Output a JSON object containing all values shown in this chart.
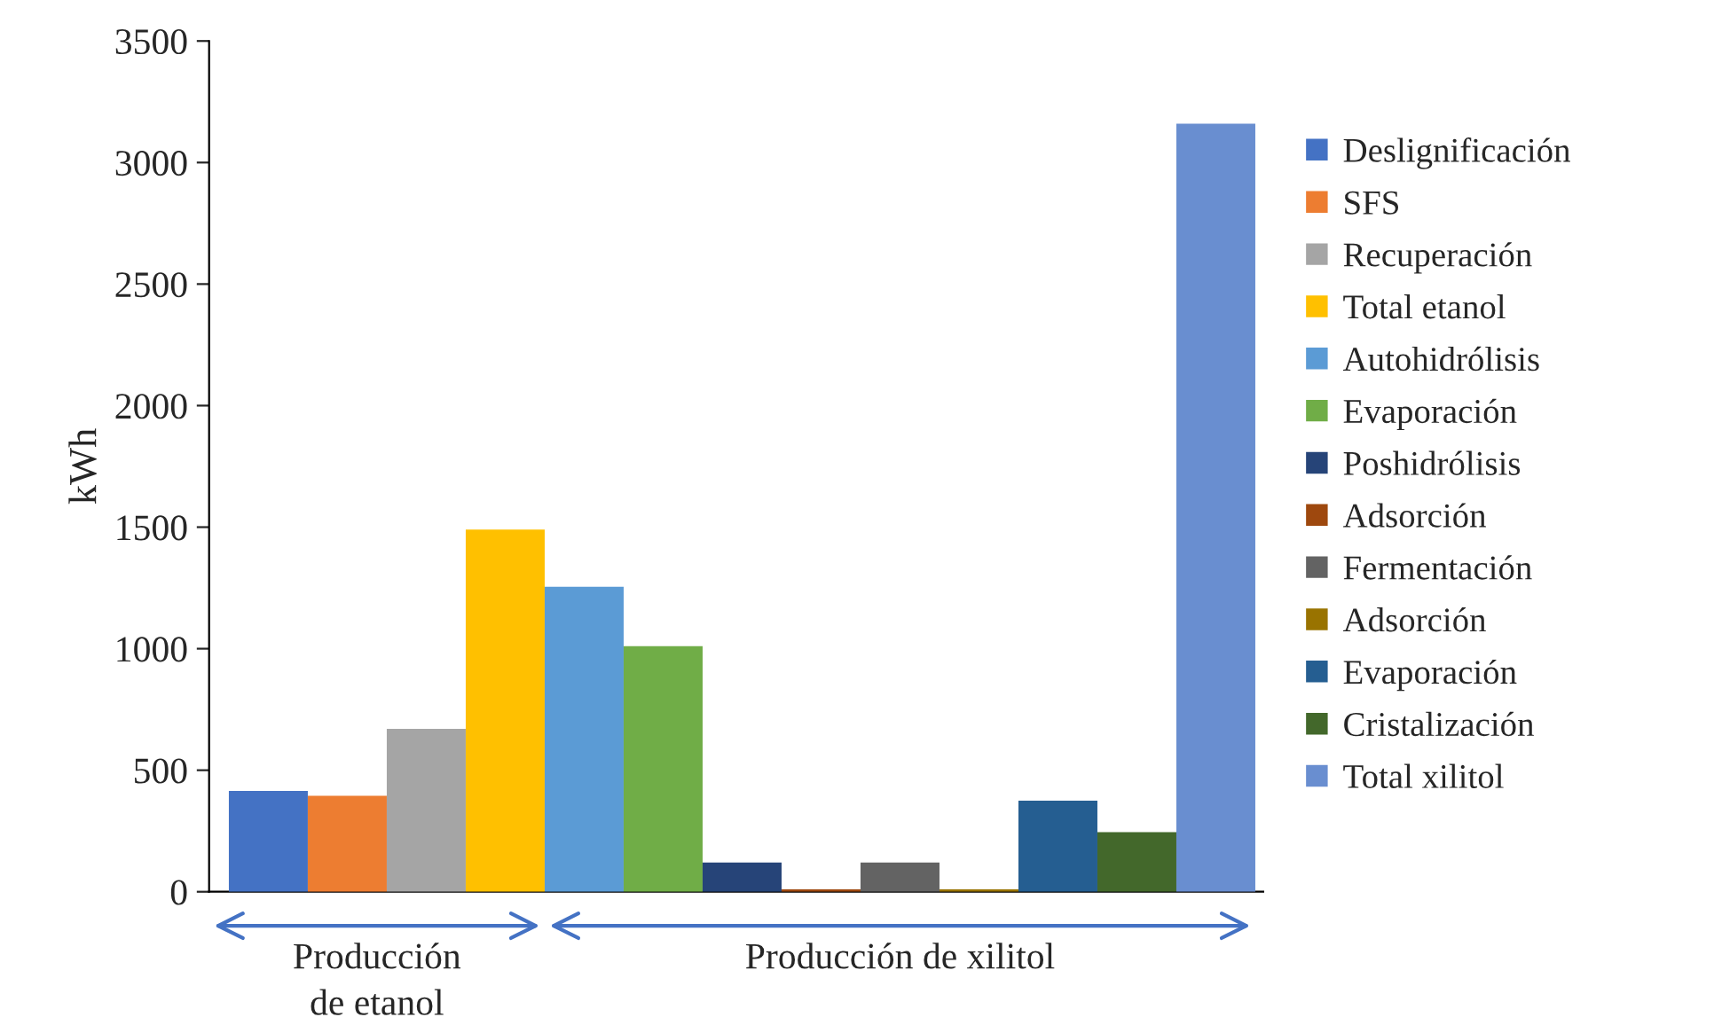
{
  "chart_data": {
    "type": "bar",
    "ylabel": "kWh",
    "categories": [
      null,
      null,
      null,
      null,
      null,
      null,
      null,
      null,
      null,
      null,
      null,
      null,
      null
    ],
    "series": [
      {
        "name": "Deslignificación",
        "color": "#4472c4",
        "values": [
          415,
          null,
          null,
          null,
          null,
          null,
          null,
          null,
          null,
          null,
          null,
          null,
          null
        ]
      },
      {
        "name": "SFS",
        "color": "#ed7d31",
        "values": [
          null,
          395,
          null,
          null,
          null,
          null,
          null,
          null,
          null,
          null,
          null,
          null,
          null
        ]
      },
      {
        "name": "Recuperación",
        "color": "#a5a5a5",
        "values": [
          null,
          null,
          670,
          null,
          null,
          null,
          null,
          null,
          null,
          null,
          null,
          null,
          null
        ]
      },
      {
        "name": "Total etanol",
        "color": "#ffc000",
        "values": [
          null,
          null,
          null,
          1490,
          null,
          null,
          null,
          null,
          null,
          null,
          null,
          null,
          null
        ]
      },
      {
        "name": "Autohidrólisis",
        "color": "#5b9bd5",
        "values": [
          null,
          null,
          null,
          null,
          1255,
          null,
          null,
          null,
          null,
          null,
          null,
          null,
          null
        ]
      },
      {
        "name": "Evaporación",
        "color": "#70ad47",
        "values": [
          null,
          null,
          null,
          null,
          null,
          1010,
          null,
          null,
          null,
          null,
          null,
          null,
          null
        ]
      },
      {
        "name": "Poshidrólisis",
        "color": "#264478",
        "values": [
          null,
          null,
          null,
          null,
          null,
          null,
          120,
          null,
          null,
          null,
          null,
          null,
          null
        ]
      },
      {
        "name": "Adsorción",
        "color": "#9e480e",
        "values": [
          null,
          null,
          null,
          null,
          null,
          null,
          null,
          10,
          null,
          null,
          null,
          null,
          null
        ]
      },
      {
        "name": "Fermentación",
        "color": "#636363",
        "values": [
          null,
          null,
          null,
          null,
          null,
          null,
          null,
          null,
          120,
          null,
          null,
          null,
          null
        ]
      },
      {
        "name": "Adsorción",
        "color": "#997300",
        "values": [
          null,
          null,
          null,
          null,
          null,
          null,
          null,
          null,
          null,
          10,
          null,
          null,
          null
        ]
      },
      {
        "name": "Evaporación",
        "color": "#255e91",
        "values": [
          null,
          null,
          null,
          null,
          null,
          null,
          null,
          null,
          null,
          null,
          375,
          null,
          null
        ]
      },
      {
        "name": "Cristalización",
        "color": "#43682b",
        "values": [
          null,
          null,
          null,
          null,
          null,
          null,
          null,
          null,
          null,
          null,
          null,
          245,
          null
        ]
      },
      {
        "name": "Total xilitol",
        "color": "#698ed0",
        "values": [
          null,
          null,
          null,
          null,
          null,
          null,
          null,
          null,
          null,
          null,
          null,
          null,
          3160
        ]
      }
    ],
    "ylim": [
      0,
      3500
    ],
    "yticks": [
      0,
      500,
      1000,
      1500,
      2000,
      2500,
      3000,
      3500
    ],
    "annotations": [
      "Producción\nde etanol",
      "Producción de xilitol"
    ],
    "legend": "right",
    "grid": false
  }
}
